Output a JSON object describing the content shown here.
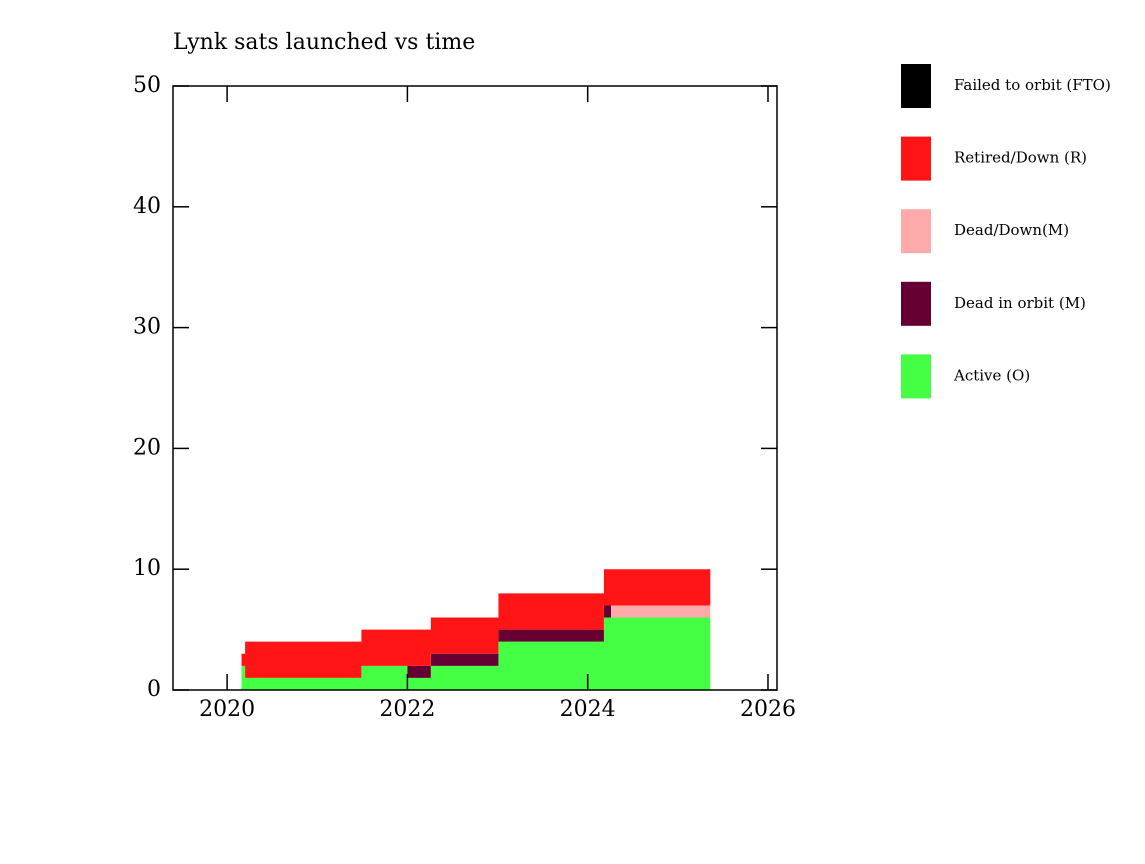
{
  "chart_data": {
    "type": "stacked_step_area",
    "title": "Lynk sats launched vs time",
    "x": [
      2020.16,
      2020.2,
      2021.49,
      2022.0,
      2022.26,
      2023.01,
      2024.18,
      2024.26,
      2025.36
    ],
    "series": [
      {
        "name": "Failed to orbit (FTO)",
        "color": "#000000",
        "values": [
          0,
          0,
          0,
          0,
          0,
          0,
          0,
          0,
          0
        ]
      },
      {
        "name": "Retired/Down (R)",
        "color": "#ff1515",
        "values": [
          1,
          3,
          3,
          3,
          3,
          3,
          3,
          3,
          3
        ]
      },
      {
        "name": "Dead/Down(M)",
        "color": "#ffaaaa",
        "values": [
          0,
          0,
          0,
          0,
          0,
          0,
          0,
          1,
          1
        ]
      },
      {
        "name": "Dead in orbit (M)",
        "color": "#660033",
        "values": [
          0,
          0,
          0,
          1,
          1,
          1,
          1,
          0,
          0
        ]
      },
      {
        "name": "Active (O)",
        "color": "#44ff44",
        "values": [
          2,
          1,
          2,
          1,
          2,
          4,
          6,
          6,
          6
        ]
      }
    ],
    "xlim": [
      2019.4,
      2026.1
    ],
    "xticks": [
      2020,
      2022,
      2024,
      2026
    ],
    "ylim": [
      0,
      50
    ],
    "yticks": [
      0,
      10,
      20,
      30,
      40,
      50
    ]
  }
}
